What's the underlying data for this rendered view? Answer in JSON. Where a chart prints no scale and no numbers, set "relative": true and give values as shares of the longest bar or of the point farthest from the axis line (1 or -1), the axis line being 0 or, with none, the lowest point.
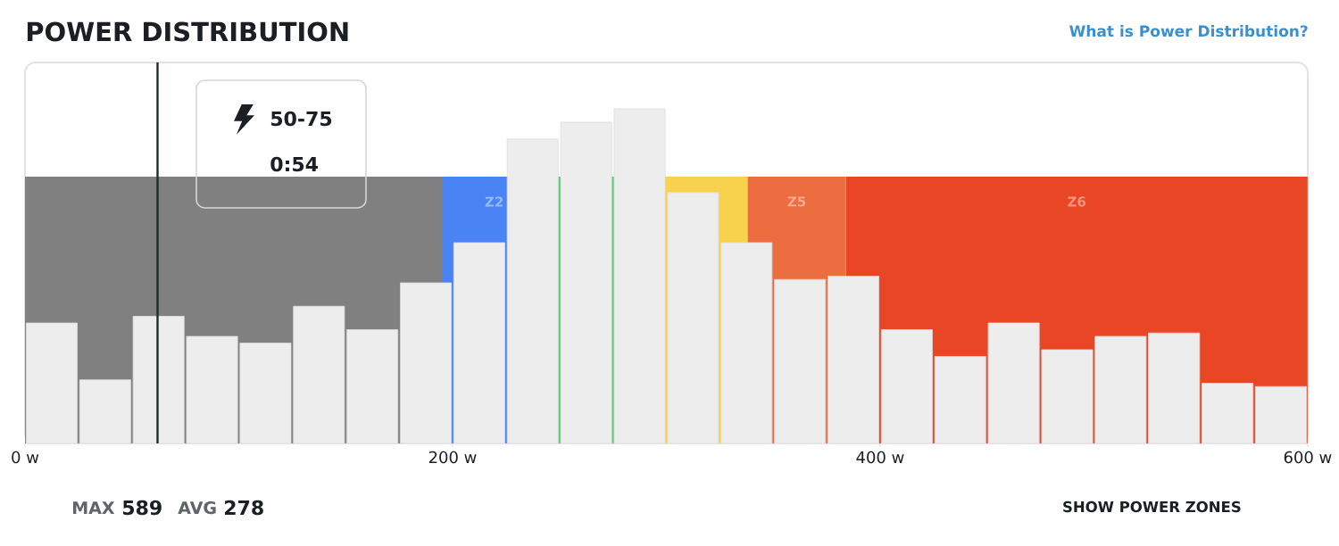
{
  "chart_data": {
    "type": "bar",
    "title": "POWER DISTRIBUTION",
    "relative": true,
    "tick_labels": "x",
    "x": [
      12.5,
      37.5,
      62.5,
      87.5,
      112.5,
      137.5,
      162.5,
      187.5,
      212.5,
      237.5,
      262.5,
      287.5,
      312.5,
      337.5,
      362.5,
      387.5,
      412.5,
      437.5,
      462.5,
      487.5,
      512.5,
      537.5,
      562.5,
      587.5
    ],
    "values": [
      0.36,
      0.19,
      0.38,
      0.32,
      0.3,
      0.41,
      0.34,
      0.48,
      0.6,
      0.91,
      0.96,
      1,
      0.75,
      0.6,
      0.49,
      0.5,
      0.34,
      0.26,
      0.36,
      0.28,
      0.32,
      0.33,
      0.18,
      0.17
    ],
    "color": "#ededed",
    "xlim": [
      0,
      600
    ],
    "xticks": [
      {
        "value": 0,
        "label": "0 w"
      },
      {
        "value": 200,
        "label": "200 w"
      },
      {
        "value": 400,
        "label": "400 w"
      },
      {
        "value": 600,
        "label": "600 w"
      }
    ],
    "bands": [
      {
        "axis": "x",
        "from": 0,
        "to": 195,
        "color": "#808080"
      },
      {
        "axis": "x",
        "from": 195,
        "to": 244,
        "label": "Z2",
        "color": "#4a84f4"
      },
      {
        "axis": "x",
        "from": 244,
        "to": 289,
        "color": "#5cc46e"
      },
      {
        "axis": "x",
        "from": 289,
        "to": 338,
        "color": "#f8d24c"
      },
      {
        "axis": "x",
        "from": 338,
        "to": 384,
        "label": "Z5",
        "color": "#ec6e40"
      },
      {
        "axis": "x",
        "from": 384,
        "to": 600,
        "label": "Z6",
        "color": "#e84625"
      }
    ],
    "ref_lines": [
      {
        "axis": "x",
        "value": 62,
        "color": "#1c2a31"
      }
    ],
    "annotations": [
      "What is Power Distribution?",
      "50-75",
      "0:54",
      "MAX",
      "589",
      "AVG",
      "278",
      "SHOW POWER ZONES"
    ]
  }
}
